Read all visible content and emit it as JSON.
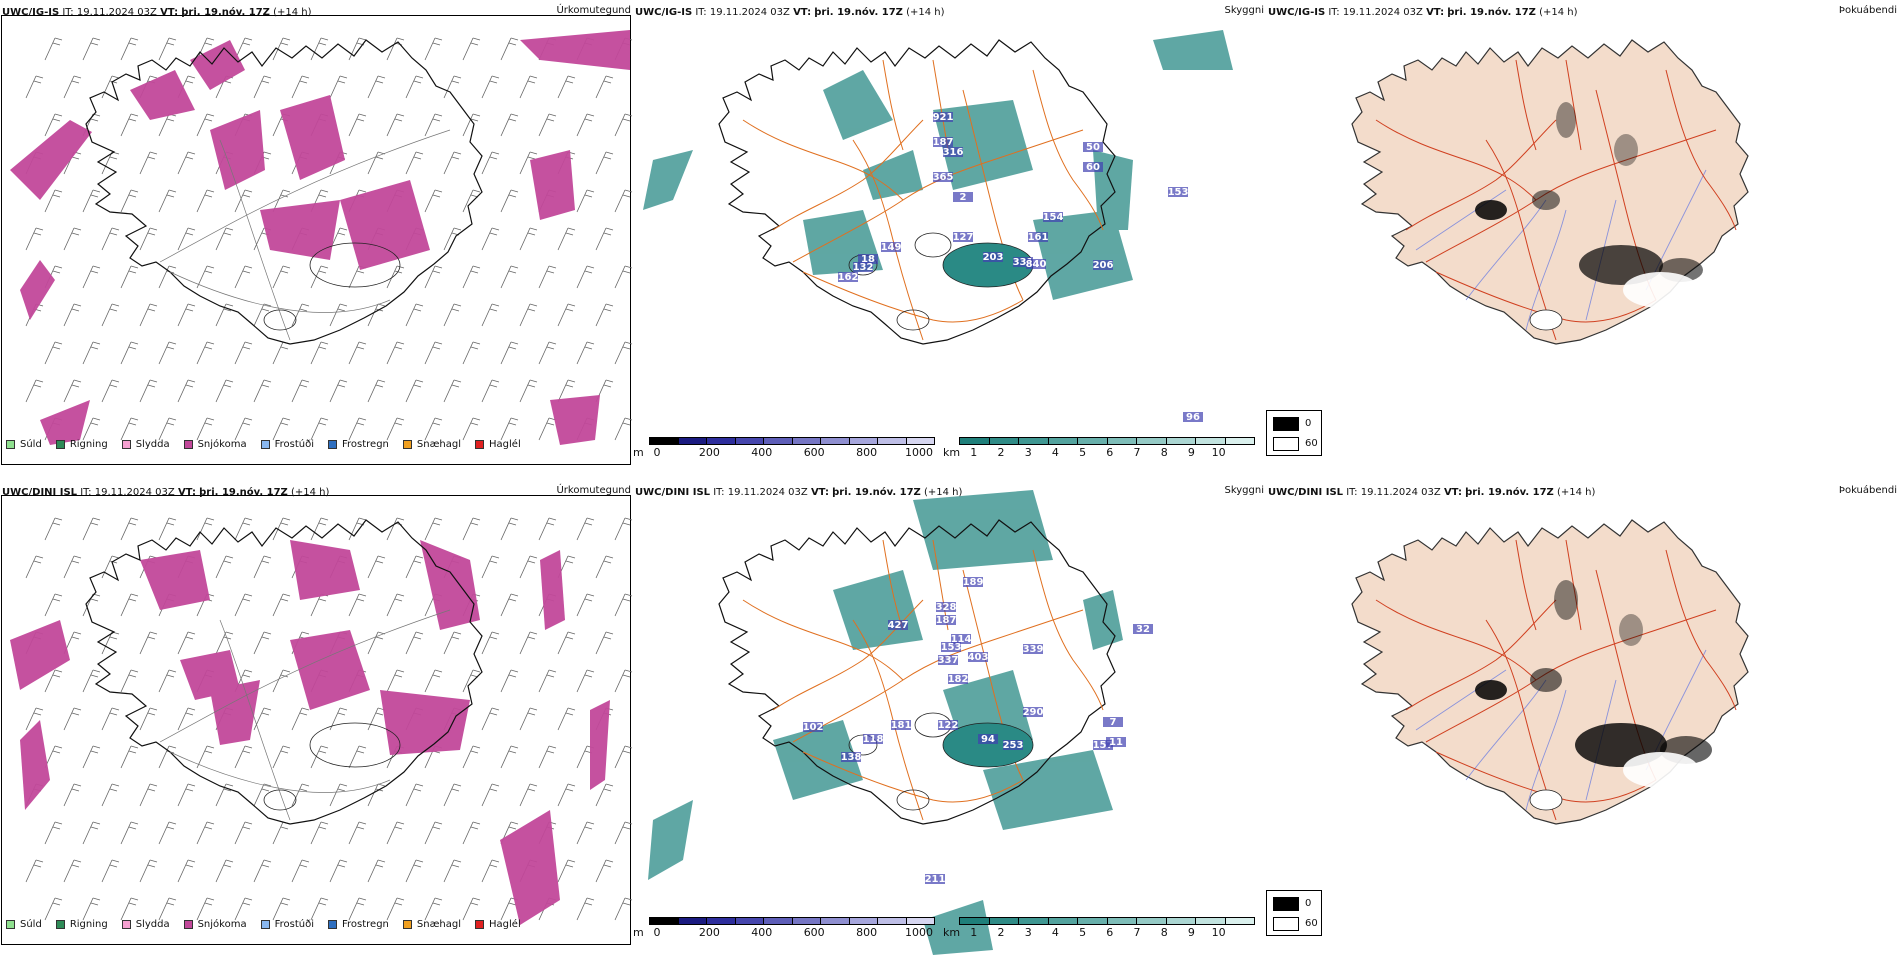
{
  "rows": [
    {
      "model": "UWC/IG-IS",
      "it_label": "IT:",
      "it_value": "19.11.2024 03Z",
      "vt_label": "VT:",
      "vt_value": "þri. 19.nóv. 17Z",
      "lead": "(+14 h)",
      "panels": [
        "Úrkomutegund",
        "Skyggni",
        "Þokuábendi"
      ],
      "visibility_labels": [
        "921",
        "187",
        "316",
        "365",
        "2",
        "50",
        "60",
        "153",
        "154",
        "161",
        "127",
        "203",
        "331",
        "840",
        "206",
        "18",
        "132",
        "149",
        "162",
        "96"
      ]
    },
    {
      "model": "UWC/DINI ISL",
      "it_label": "IT:",
      "it_value": "19.11.2024 03Z",
      "vt_label": "VT:",
      "vt_value": "þri. 19.nóv. 17Z",
      "lead": "(+14 h)",
      "panels": [
        "Úrkomutegund",
        "Skyggni",
        "Þokuábendi"
      ],
      "visibility_labels": [
        "328",
        "187",
        "189",
        "427",
        "114",
        "153",
        "337",
        "403",
        "339",
        "182",
        "32",
        "290",
        "122",
        "102",
        "118",
        "181",
        "138",
        "94",
        "253",
        "157",
        "11",
        "211",
        "7"
      ]
    }
  ],
  "precip_legend": [
    {
      "label": "Súld",
      "color": "#8fe08f"
    },
    {
      "label": "Rigning",
      "color": "#2e8b57"
    },
    {
      "label": "Slydda",
      "color": "#f5a0d0"
    },
    {
      "label": "Snjókoma",
      "color": "#c2489a"
    },
    {
      "label": "Frostúði",
      "color": "#8ab8f0"
    },
    {
      "label": "Frostregn",
      "color": "#2f6fc0"
    },
    {
      "label": "Snæhagl",
      "color": "#f0a020"
    },
    {
      "label": "Haglél",
      "color": "#e02020"
    }
  ],
  "ceiling_scale": {
    "unit": "m",
    "ticks": [
      "0",
      "200",
      "400",
      "600",
      "800",
      "1000"
    ],
    "colors": [
      "#000000",
      "#1a1a80",
      "#2d2d9c",
      "#4646ad",
      "#5e5eb8",
      "#7676c4",
      "#8f8fd0",
      "#a6a6dc",
      "#bebee6",
      "#d6d6f0"
    ]
  },
  "visibility_scale": {
    "unit": "km",
    "ticks": [
      "1",
      "2",
      "3",
      "4",
      "5",
      "6",
      "7",
      "8",
      "9",
      "10"
    ],
    "colors": [
      "#1f7f7a",
      "#2f8b86",
      "#3f9792",
      "#53a39e",
      "#68b0ab",
      "#7ebdb8",
      "#95cac5",
      "#abd6d2",
      "#c2e3df",
      "#daf0ed"
    ]
  },
  "fog_legend": {
    "values": [
      "0",
      "60"
    ],
    "colors": [
      "#000000",
      "#ffffff"
    ]
  },
  "colors": {
    "snow": "#c2489a",
    "visibility": "#2a8a85",
    "ceiling": "#4040b0",
    "roads": "#e07020",
    "land": "#f3dccb",
    "rivers": "#7080e0",
    "coast": "#111111"
  }
}
